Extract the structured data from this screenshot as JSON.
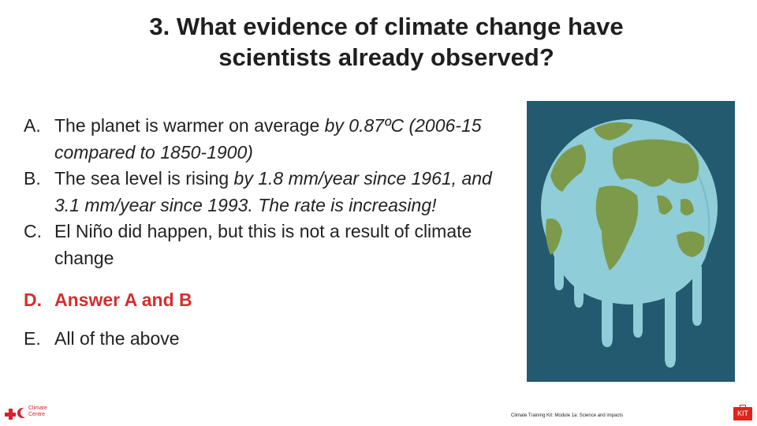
{
  "slide": {
    "title_line1": "3. What evidence of climate change have",
    "title_line2": "scientists already observed?"
  },
  "answers": [
    {
      "letter": "A.",
      "text_plain_1": "The planet is warmer on average ",
      "text_italic_1": "by 0.87ºC (2006-15 compared to 1850-1900)",
      "correct": false
    },
    {
      "letter": "B.",
      "text_plain_1": "The sea level is rising ",
      "text_italic_1": "by 1.8 mm/year since 1961, and 3.1 mm/year since 1993.  The rate is increasing!",
      "correct": false
    },
    {
      "letter": "C.",
      "text_plain_1": "El Niño did happen, but this is not a result of climate change",
      "correct": false
    },
    {
      "letter": "D.",
      "text_plain_1": "Answer A and B",
      "correct": true,
      "color": "#d32f2f"
    },
    {
      "letter": "E.",
      "text_plain_1": "All of the above",
      "correct": false
    }
  ],
  "image": {
    "icon": "melting-globe-illustration",
    "background_color": "#245a70"
  },
  "footer": {
    "logo_line1": "Climate",
    "logo_line2": "Centre",
    "logo_color": "#d6232f",
    "caption": "Climate Training Kit: Module 1a: Science and impacts",
    "kit_badge": "KIT"
  }
}
